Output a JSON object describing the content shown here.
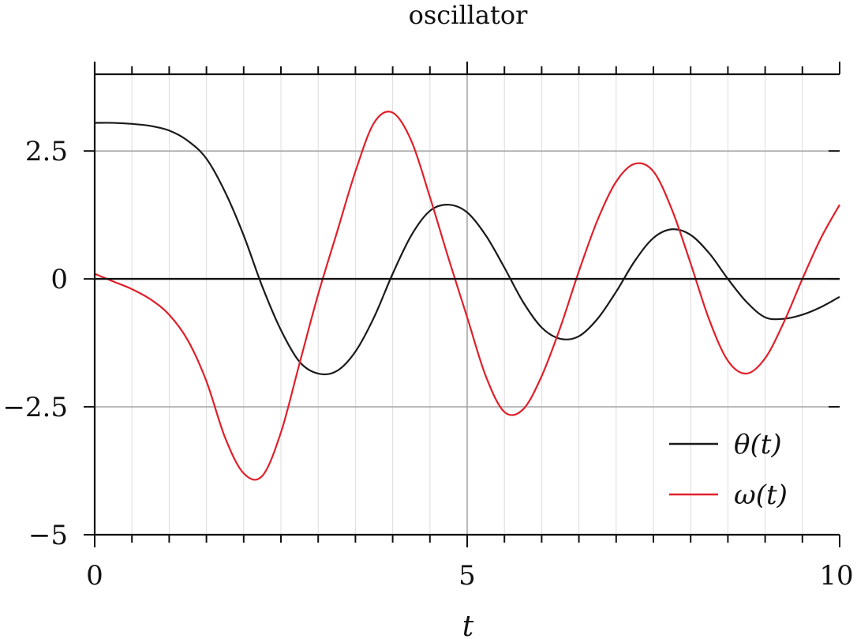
{
  "chart_data": {
    "type": "line",
    "title": "oscillator",
    "xlabel": "t",
    "ylabel": "",
    "xlim": [
      0,
      10
    ],
    "ylim": [
      -5,
      4
    ],
    "x_ticks": [
      0,
      5,
      10
    ],
    "x_tick_labels": [
      "0",
      "5",
      "10"
    ],
    "y_ticks": [
      -5,
      -2.5,
      0,
      2.5
    ],
    "y_tick_labels": [
      "−5",
      "−2.5",
      "0",
      "2.5"
    ],
    "x_minor_step": 0.5,
    "grid": true,
    "legend_position": "bottom-right",
    "series": [
      {
        "name": "θ(t)",
        "color": "#1a1a1a",
        "x": [
          0,
          0.25,
          0.5,
          0.75,
          1.0,
          1.25,
          1.5,
          1.75,
          2.0,
          2.25,
          2.5,
          2.75,
          3.0,
          3.25,
          3.5,
          3.75,
          4.0,
          4.25,
          4.5,
          4.75,
          5.0,
          5.25,
          5.5,
          5.75,
          6.0,
          6.25,
          6.5,
          6.75,
          7.0,
          7.25,
          7.5,
          7.75,
          8.0,
          8.25,
          8.5,
          8.75,
          9.0,
          9.25,
          9.5,
          9.75,
          10.0
        ],
        "values": [
          3.05,
          3.05,
          3.03,
          2.99,
          2.9,
          2.7,
          2.35,
          1.7,
          0.85,
          -0.15,
          -1.0,
          -1.62,
          -1.85,
          -1.8,
          -1.42,
          -0.75,
          0.1,
          0.85,
          1.33,
          1.45,
          1.3,
          0.85,
          0.22,
          -0.45,
          -0.95,
          -1.17,
          -1.12,
          -0.78,
          -0.25,
          0.35,
          0.8,
          0.97,
          0.86,
          0.5,
          0.0,
          -0.45,
          -0.75,
          -0.78,
          -0.7,
          -0.55,
          -0.35
        ]
      },
      {
        "name": "ω(t)",
        "color": "#e0202a",
        "x": [
          0,
          0.25,
          0.5,
          0.75,
          1.0,
          1.25,
          1.5,
          1.75,
          2.0,
          2.25,
          2.5,
          2.75,
          3.0,
          3.25,
          3.5,
          3.75,
          4.0,
          4.25,
          4.5,
          4.75,
          5.0,
          5.25,
          5.5,
          5.75,
          6.0,
          6.25,
          6.5,
          6.75,
          7.0,
          7.25,
          7.5,
          7.75,
          8.0,
          8.25,
          8.5,
          8.75,
          9.0,
          9.25,
          9.5,
          9.75,
          10.0
        ],
        "values": [
          0.1,
          -0.05,
          -0.2,
          -0.4,
          -0.7,
          -1.2,
          -2.0,
          -3.1,
          -3.8,
          -3.85,
          -3.0,
          -1.65,
          -0.3,
          0.9,
          2.1,
          3.05,
          3.25,
          2.7,
          1.6,
          0.4,
          -0.75,
          -1.9,
          -2.6,
          -2.55,
          -1.9,
          -0.95,
          0.15,
          1.15,
          1.9,
          2.25,
          2.1,
          1.35,
          0.3,
          -0.8,
          -1.6,
          -1.85,
          -1.55,
          -0.85,
          0.0,
          0.8,
          1.45
        ]
      }
    ]
  }
}
